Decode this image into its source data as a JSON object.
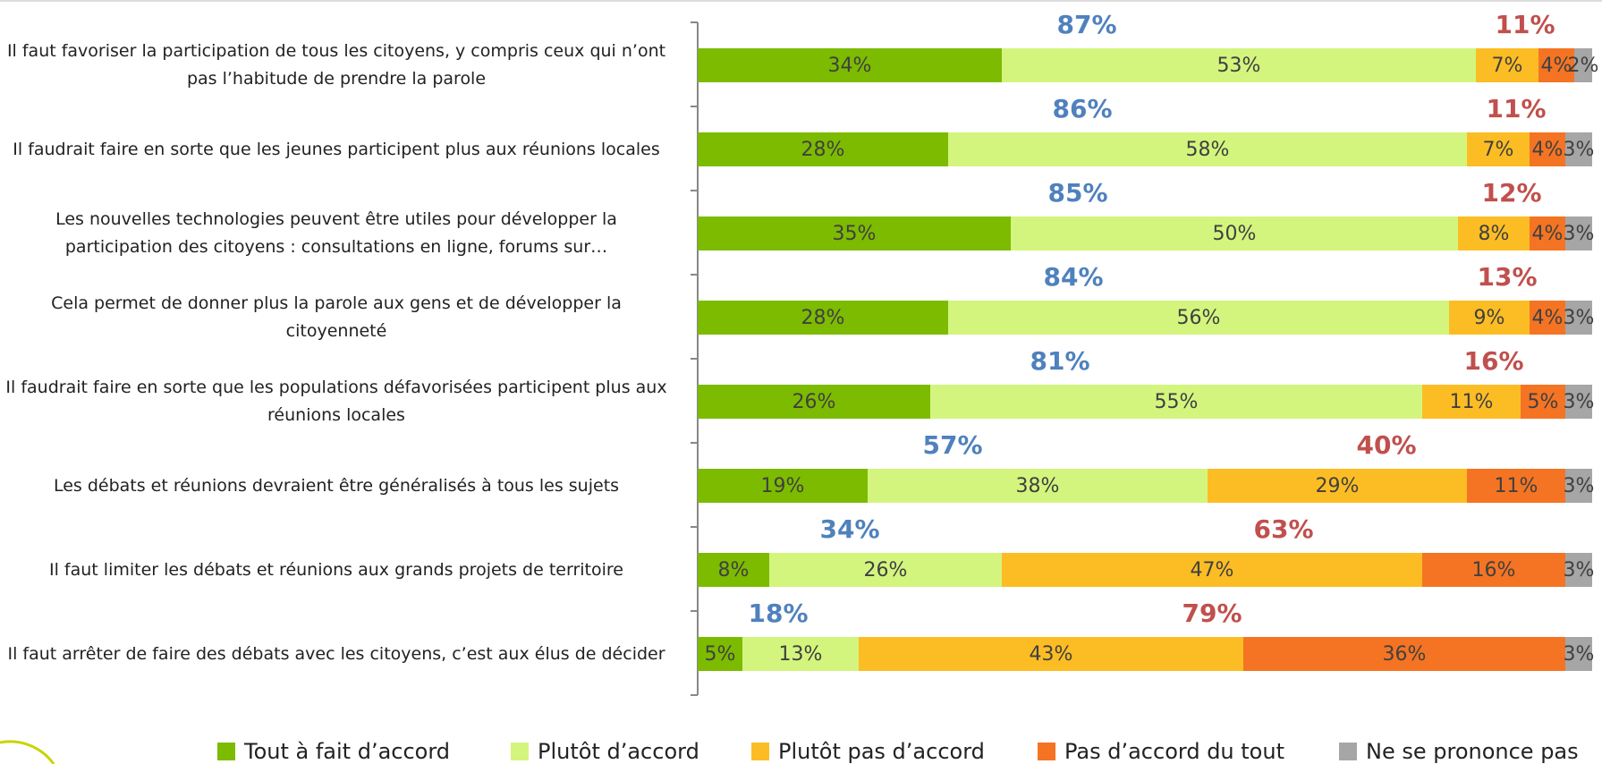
{
  "chart_data": {
    "type": "stacked-bar-horizontal",
    "categories": [
      "Il faut favoriser la participation de tous les citoyens, y compris ceux qui n’ont pas l’habitude de prendre la parole",
      "Il faudrait faire en sorte que les jeunes participent plus aux réunions locales",
      "Les nouvelles technologies peuvent être utiles pour développer la participation des citoyens : consultations en ligne, forums sur…",
      "Cela permet de donner plus la parole aux gens et de développer la citoyenneté",
      "Il faudrait faire en sorte que les populations défavorisées participent plus aux réunions locales",
      "Les débats et réunions devraient être généralisés à tous les sujets",
      "Il faut limiter les débats et réunions aux grands projets de territoire",
      "Il faut arrêter de faire des débats avec les citoyens, c’est aux élus de décider"
    ],
    "series": [
      {
        "name": "Tout à fait d’accord",
        "color": "#7cbb00",
        "values": [
          34,
          28,
          35,
          28,
          26,
          19,
          8,
          5
        ],
        "value_labels": [
          "34%",
          "28%",
          "35%",
          "28%",
          "26%",
          "19%",
          "8%",
          "5%"
        ]
      },
      {
        "name": "Plutôt d’accord",
        "color": "#d3f57e",
        "values": [
          53,
          58,
          50,
          56,
          55,
          38,
          26,
          13
        ],
        "value_labels": [
          "53%",
          "58%",
          "50%",
          "56%",
          "55%",
          "38%",
          "26%",
          "13%"
        ]
      },
      {
        "name": "Plutôt pas d’accord",
        "color": "#fcbd24",
        "values": [
          7,
          7,
          8,
          9,
          11,
          29,
          47,
          43
        ],
        "value_labels": [
          "7%",
          "7%",
          "8%",
          "9%",
          "11%",
          "29%",
          "47%",
          "43%"
        ]
      },
      {
        "name": "Pas d’accord du tout",
        "color": "#f47423",
        "values": [
          4,
          4,
          4,
          4,
          5,
          11,
          16,
          36
        ],
        "value_labels": [
          "4%",
          "4%",
          "4%",
          "4%",
          "5%",
          "11%",
          "16%",
          "36%"
        ]
      },
      {
        "name": "Ne se prononce pas",
        "color": "#a6a6a6",
        "values": [
          2,
          3,
          3,
          3,
          3,
          3,
          3,
          3
        ],
        "value_labels": [
          "2%",
          "3%",
          "3%",
          "3%",
          "3%",
          "3%",
          "3%",
          "3%"
        ]
      }
    ],
    "agree_totals": {
      "color": "#4f81bd",
      "values": [
        87,
        86,
        85,
        84,
        81,
        57,
        34,
        18
      ],
      "value_labels": [
        "87%",
        "86%",
        "85%",
        "84%",
        "81%",
        "57%",
        "34%",
        "18%"
      ]
    },
    "disagree_totals": {
      "color": "#c0504d",
      "values": [
        11,
        11,
        12,
        13,
        16,
        40,
        63,
        79
      ],
      "value_labels": [
        "11%",
        "11%",
        "12%",
        "13%",
        "16%",
        "40%",
        "63%",
        "79%"
      ]
    },
    "xlim": [
      0,
      100
    ],
    "legend": "bottom"
  }
}
